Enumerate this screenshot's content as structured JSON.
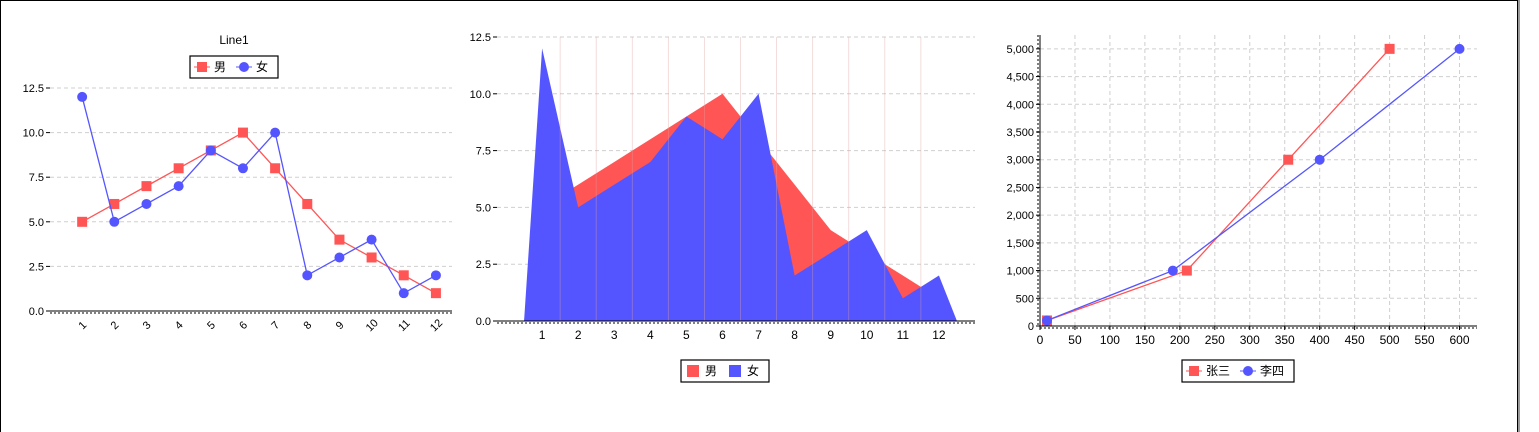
{
  "chart_data": [
    {
      "type": "line",
      "title": "Line1",
      "categories": [
        "1",
        "2",
        "3",
        "4",
        "5",
        "6",
        "7",
        "8",
        "9",
        "10",
        "11",
        "12"
      ],
      "yticks": [
        "0.0",
        "2.5",
        "5.0",
        "7.5",
        "10.0",
        "12.5"
      ],
      "ylim": [
        0,
        12.5
      ],
      "grid": true,
      "legend_position": "top",
      "series": [
        {
          "name": "男",
          "marker": "square",
          "color": "#ff5555",
          "values": [
            5,
            6,
            7,
            8,
            9,
            10,
            8,
            6,
            4,
            3,
            2,
            1
          ]
        },
        {
          "name": "女",
          "marker": "circle",
          "color": "#5555ff",
          "values": [
            12,
            5,
            6,
            7,
            9,
            8,
            10,
            2,
            3,
            4,
            1,
            2
          ]
        }
      ]
    },
    {
      "type": "area",
      "title": "",
      "categories": [
        "1",
        "2",
        "3",
        "4",
        "5",
        "6",
        "7",
        "8",
        "9",
        "10",
        "11",
        "12"
      ],
      "yticks": [
        "0.0",
        "2.5",
        "5.0",
        "7.5",
        "10.0",
        "12.5"
      ],
      "ylim": [
        0,
        12.5
      ],
      "grid": true,
      "legend_position": "bottom",
      "series": [
        {
          "name": "男",
          "color": "#ff5555",
          "values": [
            5,
            6,
            7,
            8,
            9,
            10,
            8,
            6,
            4,
            3,
            2,
            1
          ]
        },
        {
          "name": "女",
          "color": "#5555ff",
          "values": [
            12,
            5,
            6,
            7,
            9,
            8,
            10,
            2,
            3,
            4,
            1,
            2
          ]
        }
      ]
    },
    {
      "type": "scatter",
      "title": "",
      "xticks": [
        "0",
        "50",
        "100",
        "150",
        "200",
        "250",
        "300",
        "350",
        "400",
        "450",
        "500",
        "550",
        "600"
      ],
      "yticks": [
        "0",
        "500",
        "1,000",
        "1,500",
        "2,000",
        "2,500",
        "3,000",
        "3,500",
        "4,000",
        "4,500",
        "5,000"
      ],
      "xlim": [
        0,
        625
      ],
      "ylim": [
        0,
        5250
      ],
      "grid": true,
      "legend_position": "bottom",
      "series": [
        {
          "name": "张三",
          "marker": "square",
          "color": "#ff5555",
          "x": [
            10,
            210,
            355,
            500
          ],
          "y": [
            100,
            1000,
            3000,
            5000
          ]
        },
        {
          "name": "李四",
          "marker": "circle",
          "color": "#5555ff",
          "x": [
            10,
            190,
            400,
            600
          ],
          "y": [
            100,
            1000,
            3000,
            5000
          ]
        }
      ]
    }
  ]
}
